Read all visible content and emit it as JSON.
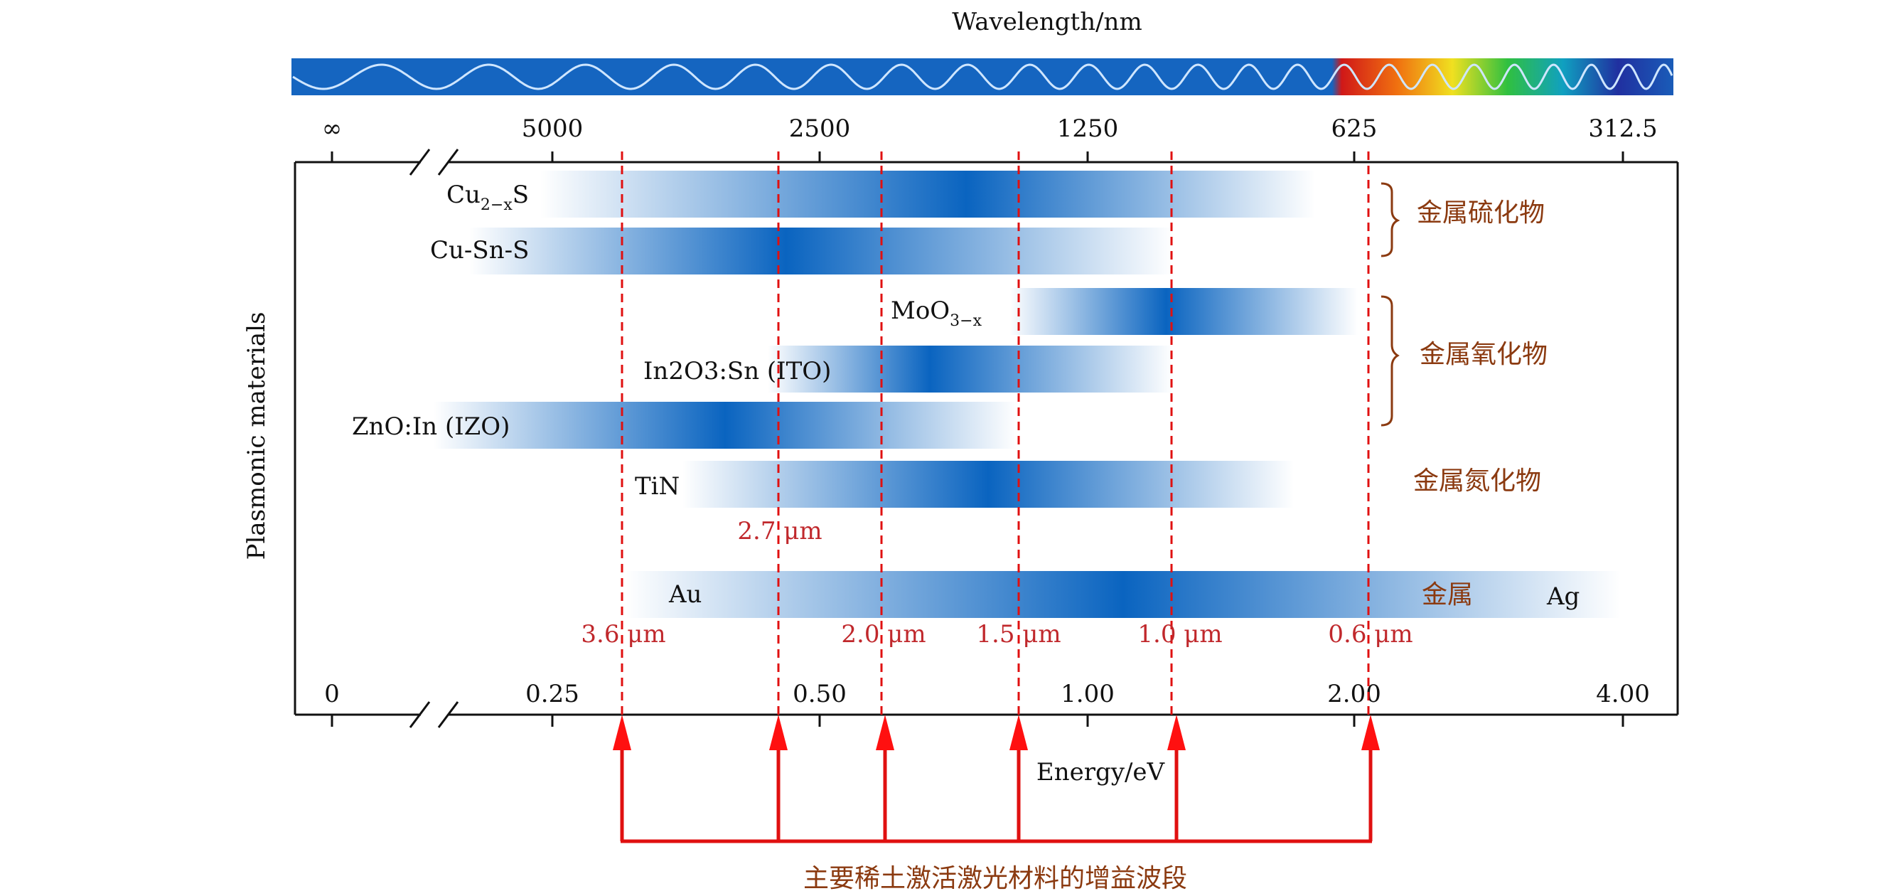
{
  "wavelength_axis": {
    "title": "Wavelength/nm",
    "ticks": [
      "∞",
      "5000",
      "2500",
      "1250",
      "625",
      "312.5"
    ]
  },
  "energy_axis": {
    "title": "Energy/eV",
    "ticks": [
      "0",
      "0.25",
      "0.50",
      "1.00",
      "2.00",
      "4.00"
    ]
  },
  "y_axis_label": "Plasmonic materials",
  "materials": [
    {
      "name": "Cu2−xS",
      "base": "Cu",
      "sub": "2−x",
      "suffix": "S"
    },
    {
      "name": "Cu-Sn-S"
    },
    {
      "name": "MoO3−x",
      "base": "MoO",
      "sub": "3−x",
      "suffix": ""
    },
    {
      "name": "In2O3:Sn (ITO)"
    },
    {
      "name": "ZnO:In (IZO)"
    },
    {
      "name": "TiN"
    },
    {
      "name": "Au"
    },
    {
      "name": "Ag"
    }
  ],
  "groups": [
    {
      "label": "金属硫化物"
    },
    {
      "label": "金属氧化物"
    },
    {
      "label": "金属氮化物"
    },
    {
      "label": "金属"
    }
  ],
  "laser_lines": [
    {
      "label": "3.6 μm"
    },
    {
      "label": "2.7 μm"
    },
    {
      "label": "2.0 μm"
    },
    {
      "label": "1.5 μm"
    },
    {
      "label": "1.0 μm"
    },
    {
      "label": "0.6 μm"
    }
  ],
  "bottom_label": "主要稀土激活激光材料的增益波段",
  "colors": {
    "band": "#0a64c0",
    "laser_line": "#e01010",
    "group_text": "#8b3a10",
    "spectrum_blue": "#1565c0"
  }
}
